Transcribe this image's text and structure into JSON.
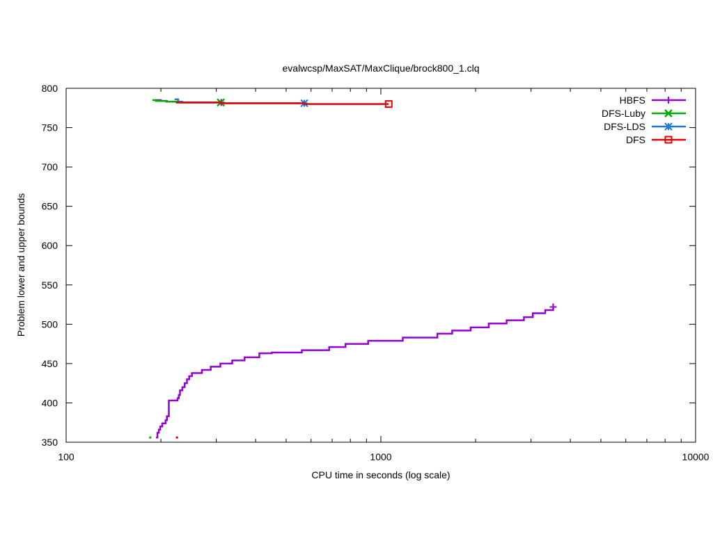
{
  "chart_data": {
    "type": "line",
    "title": "evalwcsp/MaxSAT/MaxClique/brock800_1.clq",
    "xlabel": "CPU time in seconds (log scale)",
    "ylabel": "Problem lower and upper bounds",
    "xscale": "log",
    "xlim": [
      100,
      10000
    ],
    "ylim": [
      350,
      800
    ],
    "xticks": [
      100,
      1000,
      10000
    ],
    "xtick_labels": [
      "100",
      "1000",
      "10000"
    ],
    "yticks": [
      350,
      400,
      450,
      500,
      550,
      600,
      650,
      700,
      750,
      800
    ],
    "ytick_labels": [
      "350",
      "400",
      "450",
      "500",
      "550",
      "600",
      "650",
      "700",
      "750",
      "800"
    ],
    "grid": false,
    "legend_position": "top-right",
    "series": [
      {
        "name": "HBFS",
        "color": "#9400d3",
        "marker": "plus",
        "step": true,
        "points": [
          [
            193,
            356
          ],
          [
            195,
            362
          ],
          [
            197,
            366
          ],
          [
            199,
            370
          ],
          [
            202,
            374
          ],
          [
            207,
            378
          ],
          [
            209,
            383
          ],
          [
            212,
            403
          ],
          [
            226,
            406
          ],
          [
            228,
            410
          ],
          [
            230,
            416
          ],
          [
            234,
            420
          ],
          [
            238,
            425
          ],
          [
            242,
            430
          ],
          [
            246,
            434
          ],
          [
            251,
            438
          ],
          [
            270,
            442
          ],
          [
            288,
            446
          ],
          [
            309,
            450
          ],
          [
            337,
            454
          ],
          [
            369,
            458
          ],
          [
            411,
            463
          ],
          [
            450,
            464
          ],
          [
            561,
            467
          ],
          [
            685,
            471
          ],
          [
            772,
            475
          ],
          [
            911,
            479
          ],
          [
            1174,
            483
          ],
          [
            1512,
            488
          ],
          [
            1685,
            492
          ],
          [
            1929,
            496
          ],
          [
            2202,
            501
          ],
          [
            2509,
            505
          ],
          [
            2848,
            509
          ],
          [
            3040,
            514
          ],
          [
            3328,
            518
          ],
          [
            3528,
            522
          ]
        ]
      },
      {
        "name": "HBFS",
        "color": "#9400d3",
        "marker": "plus",
        "step": true,
        "points": [
          [
            191,
            785
          ],
          [
            200,
            784
          ],
          [
            209,
            783
          ],
          [
            225,
            782
          ],
          [
            311,
            782
          ]
        ]
      },
      {
        "name": "DFS-Luby",
        "color": "#00aa00",
        "marker": "x",
        "step": true,
        "points": [
          [
            188,
            785
          ],
          [
            193,
            784
          ],
          [
            208,
            783
          ],
          [
            224,
            782
          ],
          [
            310,
            782
          ]
        ]
      },
      {
        "name": "DFS-Luby",
        "color": "#00aa00",
        "marker": "x",
        "step": true,
        "points": [
          [
            185,
            356
          ]
        ]
      },
      {
        "name": "DFS-LDS",
        "color": "#1e78dc",
        "marker": "star",
        "step": true,
        "points": [
          [
            221,
            786
          ],
          [
            227,
            783
          ],
          [
            234,
            782
          ],
          [
            310,
            781
          ],
          [
            571,
            781
          ]
        ]
      },
      {
        "name": "DFS",
        "color": "#e00000",
        "marker": "square",
        "step": true,
        "points": [
          [
            224,
            782
          ],
          [
            310,
            781
          ],
          [
            571,
            780
          ],
          [
            1059,
            780
          ]
        ]
      },
      {
        "name": "DFS",
        "color": "#e00000",
        "marker": "square",
        "step": true,
        "points": [
          [
            225,
            356
          ]
        ]
      }
    ],
    "legend": [
      {
        "name": "HBFS",
        "color": "#9400d3",
        "marker": "plus"
      },
      {
        "name": "DFS-Luby",
        "color": "#00aa00",
        "marker": "x"
      },
      {
        "name": "DFS-LDS",
        "color": "#1e78dc",
        "marker": "star"
      },
      {
        "name": "DFS",
        "color": "#e00000",
        "marker": "square"
      }
    ]
  }
}
